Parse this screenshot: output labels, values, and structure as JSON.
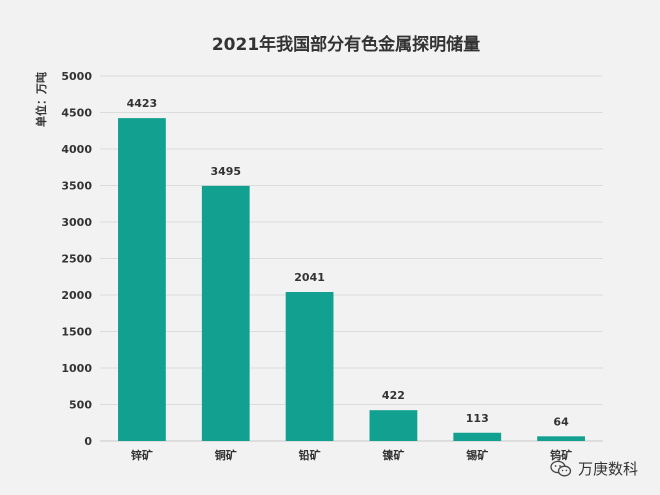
{
  "chart_data": {
    "type": "bar",
    "title": "2021年我国部分有色金属探明储量",
    "ylabel": "单位：万吨",
    "xlabel": "",
    "categories": [
      "锌矿",
      "铜矿",
      "铅矿",
      "镍矿",
      "锡矿",
      "钨矿"
    ],
    "values": [
      4423,
      3495,
      2041,
      422,
      113,
      64
    ],
    "ylim": [
      0,
      5000
    ],
    "yticks": [
      0,
      500,
      1000,
      1500,
      2000,
      2500,
      3000,
      3500,
      4000,
      4500,
      5000
    ],
    "grid": true,
    "legend": "none",
    "data_labels": true,
    "bar_color": "#12a090"
  },
  "watermark": {
    "text": "万庚数科",
    "icon": "wechat-icon"
  }
}
